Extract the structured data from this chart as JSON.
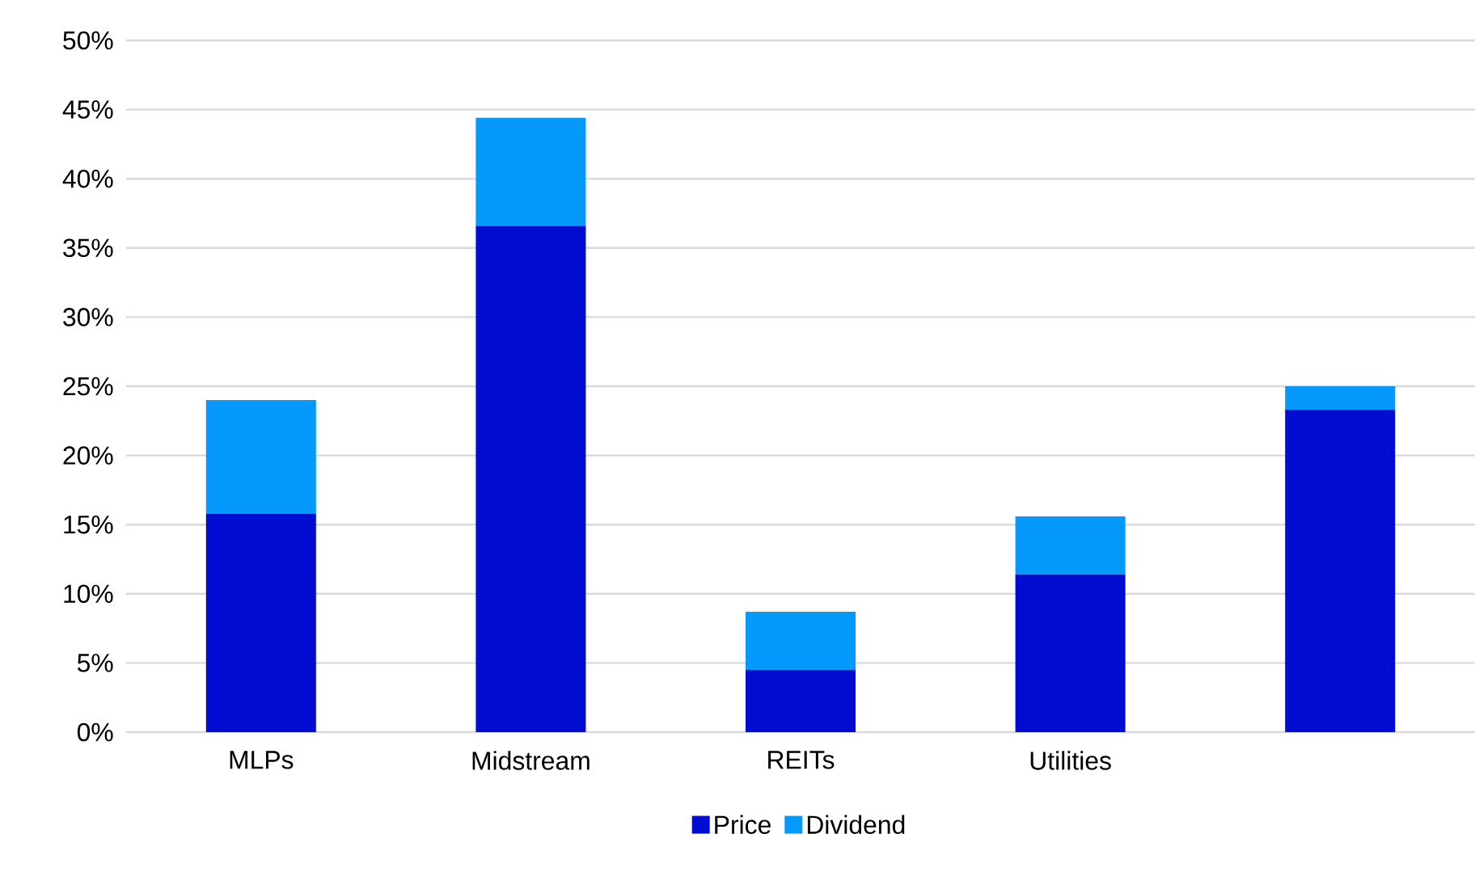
{
  "chart_data": {
    "type": "bar",
    "stacked": true,
    "categories": [
      "MLPs",
      "Midstream",
      "REITs",
      "Utilities",
      null
    ],
    "series": [
      {
        "name": "Price",
        "color": "#000ccf",
        "values": [
          15.8,
          36.6,
          4.5,
          11.4,
          23.3
        ]
      },
      {
        "name": "Dividend",
        "color": "#0599fc",
        "values": [
          8.2,
          7.8,
          4.2,
          4.2,
          1.7
        ]
      }
    ],
    "ylim": [
      0,
      50
    ],
    "yticks": [
      {
        "value": 0,
        "label": "0%"
      },
      {
        "value": 5,
        "label": "5%"
      },
      {
        "value": 10,
        "label": "10%"
      },
      {
        "value": 15,
        "label": "15%"
      },
      {
        "value": 20,
        "label": "20%"
      },
      {
        "value": 25,
        "label": "25%"
      },
      {
        "value": 30,
        "label": "30%"
      },
      {
        "value": 35,
        "label": "35%"
      },
      {
        "value": 40,
        "label": "40%"
      },
      {
        "value": 45,
        "label": "45%"
      },
      {
        "value": 50,
        "label": "50%"
      }
    ],
    "grid": "y",
    "legend": "bottom"
  }
}
